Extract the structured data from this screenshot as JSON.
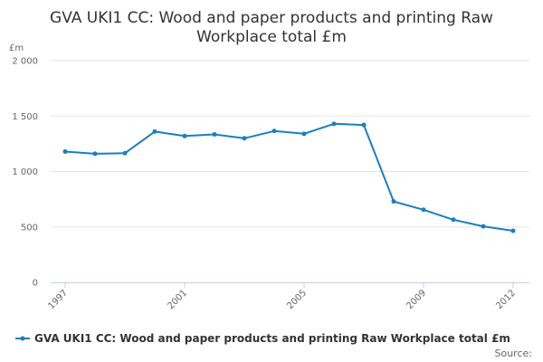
{
  "chart_data": {
    "type": "line",
    "title": "GVA UKI1 CC: Wood and paper products and printing Raw Workplace total £m",
    "title_lines": [
      "GVA UKI1 CC: Wood and paper products and printing Raw",
      "Workplace total £m"
    ],
    "ylabel": "£m",
    "xlabel": "",
    "ylim": [
      0,
      2000
    ],
    "yticks": [
      0,
      500,
      1000,
      1500,
      2000
    ],
    "ytick_labels": [
      "0",
      "500",
      "1 000",
      "1 500",
      "2 000"
    ],
    "xlim": [
      1997,
      2012
    ],
    "xticks": [
      1997,
      2001,
      2005,
      2009,
      2012
    ],
    "xtick_labels": [
      "1997",
      "2001",
      "2005",
      "2009",
      "2012"
    ],
    "grid": true,
    "legend_position": "bottom",
    "series": [
      {
        "name": "GVA UKI1 CC: Wood and paper products and printing Raw Workplace total £m",
        "color": "#1a7fc1",
        "x": [
          1997,
          1998,
          1999,
          2000,
          2001,
          2002,
          2003,
          2004,
          2005,
          2006,
          2007,
          2008,
          2009,
          2010,
          2011,
          2012
        ],
        "values": [
          1180,
          1160,
          1165,
          1360,
          1320,
          1335,
          1300,
          1365,
          1340,
          1430,
          1420,
          730,
          655,
          565,
          505,
          465
        ]
      }
    ]
  },
  "source_label": "Source:"
}
